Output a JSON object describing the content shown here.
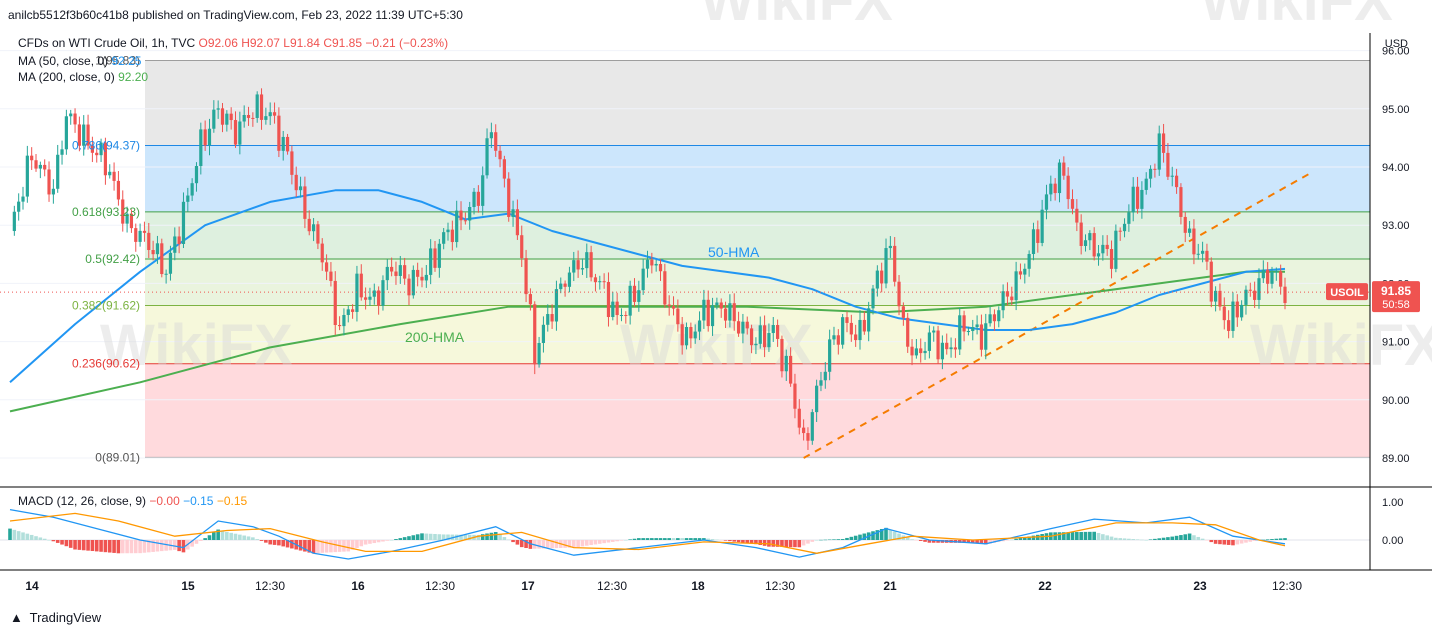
{
  "header": {
    "published": "anilcb5512f3b60c41b8 published on TradingView.com, Feb 23, 2022 11:39 UTC+5:30",
    "symbol": "CFDs on WTI Crude Oil, 1h, TVC",
    "open": "O92.06",
    "high": "H92.07",
    "low": "L91.84",
    "close": "C91.85",
    "change": "−0.21 (−0.23%)",
    "ma50_label": "MA (50, close, 0)",
    "ma50_value": "92.25",
    "ma200_label": "MA (200, close, 0)",
    "ma200_value": "92.20",
    "macd_label": "MACD (12, 26, close, 9)",
    "macd_values": [
      "−0.00",
      "−0.15",
      "−0.15"
    ]
  },
  "price_scale": {
    "currency": "USD",
    "ticks": [
      "89.00",
      "90.00",
      "91.00",
      "92.00",
      "93.00",
      "94.00",
      "95.00",
      "96.00"
    ],
    "symbol_badge": "USOIL",
    "last_price": "91.85",
    "countdown": "50:58"
  },
  "macd_scale": {
    "ticks": [
      "1.00",
      "0.00"
    ]
  },
  "time_axis": [
    "14",
    "15",
    "12:30",
    "16",
    "12:30",
    "17",
    "12:30",
    "18",
    "12:30",
    "21",
    "22",
    "23",
    "12:30"
  ],
  "footer": {
    "brand": "TradingView"
  },
  "watermark": "WikiFX",
  "colors": {
    "up": "#26a69a",
    "down": "#ef5350",
    "ma50": "#2196f3",
    "ma200": "#4caf50",
    "macd": "#2196f3",
    "signal": "#ff9800",
    "trendline": "#f57c00"
  },
  "chart_data": {
    "type": "candlestick",
    "title": "CFDs on WTI Crude Oil, 1h, TVC",
    "ylim": [
      89.0,
      96.0
    ],
    "fibonacci": [
      {
        "label": "1(95.83)",
        "value": 95.83
      },
      {
        "label": "0.786(94.37)",
        "value": 94.37
      },
      {
        "label": "0.618(93.23)",
        "value": 93.23
      },
      {
        "label": "0.5(92.42)",
        "value": 92.42
      },
      {
        "label": "0.382(91.62)",
        "value": 91.62
      },
      {
        "label": "0.236(90.62)",
        "value": 90.62
      },
      {
        "label": "0(89.01)",
        "value": 89.01
      }
    ],
    "annotations": [
      {
        "text": "50-HMA",
        "series": "ma50"
      },
      {
        "text": "200-HMA",
        "series": "ma200"
      }
    ],
    "price_path": [
      [
        0,
        92.9
      ],
      [
        5,
        94.2
      ],
      [
        10,
        93.6
      ],
      [
        13,
        94.9
      ],
      [
        18,
        94.4
      ],
      [
        22,
        94.1
      ],
      [
        27,
        93.0
      ],
      [
        32,
        92.7
      ],
      [
        36,
        92.2
      ],
      [
        40,
        93.2
      ],
      [
        44,
        94.4
      ],
      [
        48,
        95.0
      ],
      [
        52,
        94.6
      ],
      [
        56,
        95.0
      ],
      [
        60,
        94.9
      ],
      [
        64,
        94.2
      ],
      [
        68,
        93.2
      ],
      [
        72,
        92.5
      ],
      [
        76,
        91.2
      ],
      [
        80,
        91.9
      ],
      [
        84,
        91.7
      ],
      [
        88,
        92.3
      ],
      [
        92,
        92.0
      ],
      [
        96,
        92.2
      ],
      [
        100,
        92.8
      ],
      [
        104,
        93.1
      ],
      [
        108,
        93.5
      ],
      [
        111,
        94.7
      ],
      [
        114,
        93.7
      ],
      [
        118,
        92.5
      ],
      [
        121,
        90.8
      ],
      [
        124,
        91.4
      ],
      [
        128,
        92.1
      ],
      [
        132,
        92.4
      ],
      [
        136,
        92.0
      ],
      [
        140,
        91.4
      ],
      [
        144,
        91.8
      ],
      [
        148,
        92.5
      ],
      [
        152,
        91.6
      ],
      [
        156,
        91.0
      ],
      [
        160,
        91.5
      ],
      [
        164,
        91.6
      ],
      [
        168,
        91.3
      ],
      [
        172,
        91.0
      ],
      [
        176,
        91.2
      ],
      [
        180,
        90.3
      ],
      [
        183,
        89.2
      ],
      [
        186,
        90.1
      ],
      [
        189,
        90.9
      ],
      [
        192,
        91.3
      ],
      [
        196,
        91.1
      ],
      [
        200,
        92.1
      ],
      [
        203,
        92.6
      ],
      [
        206,
        91.2
      ],
      [
        209,
        90.7
      ],
      [
        212,
        91.1
      ],
      [
        216,
        90.8
      ],
      [
        220,
        91.3
      ],
      [
        224,
        91.1
      ],
      [
        228,
        91.6
      ],
      [
        232,
        92.0
      ],
      [
        236,
        92.7
      ],
      [
        240,
        93.7
      ],
      [
        243,
        93.9
      ],
      [
        246,
        92.9
      ],
      [
        250,
        92.6
      ],
      [
        254,
        92.5
      ],
      [
        258,
        93.3
      ],
      [
        262,
        93.7
      ],
      [
        265,
        94.4
      ],
      [
        268,
        93.8
      ],
      [
        272,
        92.7
      ],
      [
        275,
        92.5
      ],
      [
        278,
        91.7
      ],
      [
        281,
        91.3
      ],
      [
        284,
        91.7
      ],
      [
        287,
        91.9
      ],
      [
        290,
        92.2
      ],
      [
        292,
        92.1
      ],
      [
        294,
        91.85
      ]
    ],
    "ma50_path": [
      [
        0,
        90.3
      ],
      [
        15,
        91.3
      ],
      [
        30,
        92.2
      ],
      [
        45,
        93.0
      ],
      [
        60,
        93.4
      ],
      [
        75,
        93.6
      ],
      [
        85,
        93.6
      ],
      [
        95,
        93.4
      ],
      [
        105,
        93.1
      ],
      [
        115,
        93.2
      ],
      [
        125,
        92.9
      ],
      [
        140,
        92.6
      ],
      [
        155,
        92.3
      ],
      [
        165,
        92.2
      ],
      [
        175,
        92.1
      ],
      [
        185,
        91.9
      ],
      [
        195,
        91.6
      ],
      [
        205,
        91.4
      ],
      [
        215,
        91.3
      ],
      [
        225,
        91.2
      ],
      [
        235,
        91.2
      ],
      [
        245,
        91.3
      ],
      [
        255,
        91.5
      ],
      [
        265,
        91.8
      ],
      [
        275,
        92.0
      ],
      [
        285,
        92.2
      ],
      [
        294,
        92.25
      ]
    ],
    "ma200_path": [
      [
        0,
        89.8
      ],
      [
        30,
        90.3
      ],
      [
        60,
        90.9
      ],
      [
        90,
        91.3
      ],
      [
        115,
        91.6
      ],
      [
        140,
        91.6
      ],
      [
        170,
        91.6
      ],
      [
        200,
        91.5
      ],
      [
        225,
        91.6
      ],
      [
        245,
        91.8
      ],
      [
        265,
        92.0
      ],
      [
        285,
        92.2
      ],
      [
        294,
        92.2
      ]
    ],
    "trendline": [
      [
        183,
        89.0
      ],
      [
        300,
        93.9
      ]
    ],
    "macd": {
      "ylim": [
        -0.6,
        1.25
      ],
      "macd_path": [
        [
          0,
          0.8
        ],
        [
          10,
          0.6
        ],
        [
          20,
          0.3
        ],
        [
          30,
          0.0
        ],
        [
          40,
          -0.2
        ],
        [
          48,
          0.5
        ],
        [
          56,
          0.35
        ],
        [
          62,
          0.1
        ],
        [
          70,
          -0.35
        ],
        [
          78,
          -0.5
        ],
        [
          88,
          -0.3
        ],
        [
          100,
          0.0
        ],
        [
          112,
          0.35
        ],
        [
          120,
          -0.1
        ],
        [
          130,
          -0.4
        ],
        [
          145,
          -0.2
        ],
        [
          160,
          0.0
        ],
        [
          172,
          -0.2
        ],
        [
          182,
          -0.45
        ],
        [
          192,
          -0.2
        ],
        [
          202,
          0.3
        ],
        [
          212,
          0.0
        ],
        [
          225,
          -0.1
        ],
        [
          240,
          0.3
        ],
        [
          250,
          0.55
        ],
        [
          262,
          0.45
        ],
        [
          272,
          0.6
        ],
        [
          282,
          0.1
        ],
        [
          294,
          -0.1
        ]
      ],
      "signal_path": [
        [
          0,
          0.5
        ],
        [
          15,
          0.7
        ],
        [
          25,
          0.5
        ],
        [
          38,
          0.1
        ],
        [
          50,
          0.25
        ],
        [
          60,
          0.3
        ],
        [
          72,
          -0.05
        ],
        [
          82,
          -0.3
        ],
        [
          95,
          -0.3
        ],
        [
          108,
          0.1
        ],
        [
          118,
          0.2
        ],
        [
          130,
          -0.2
        ],
        [
          145,
          -0.25
        ],
        [
          160,
          -0.05
        ],
        [
          175,
          -0.1
        ],
        [
          186,
          -0.35
        ],
        [
          198,
          -0.1
        ],
        [
          208,
          0.1
        ],
        [
          222,
          0.0
        ],
        [
          240,
          0.1
        ],
        [
          255,
          0.45
        ],
        [
          268,
          0.45
        ],
        [
          278,
          0.4
        ],
        [
          288,
          0.0
        ],
        [
          294,
          -0.15
        ]
      ]
    }
  }
}
